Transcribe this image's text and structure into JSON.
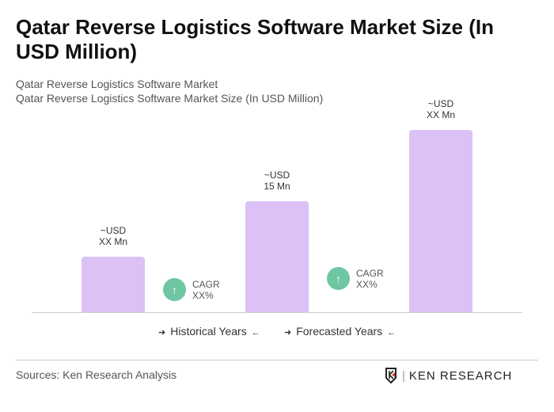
{
  "title": "Qatar Reverse Logistics Software Market Size (In USD Million)",
  "subtitle1": "Qatar Reverse Logistics Software Market",
  "subtitle2": "Qatar Reverse Logistics Software Market Size (In USD Million)",
  "chart_data": {
    "type": "bar",
    "categories": [
      "",
      "",
      ""
    ],
    "values": [
      null,
      15,
      null
    ],
    "data_labels": [
      [
        "~USD",
        "XX Mn"
      ],
      [
        "~USD",
        "15 Mn"
      ],
      [
        "~USD",
        "XX Mn"
      ]
    ],
    "bar_color": "#dcc1f6",
    "cagr": [
      {
        "label": "CAGR",
        "value": "XX%"
      },
      {
        "label": "CAGR",
        "value": "XX%"
      }
    ],
    "cagr_color": "#6fc6a3",
    "legend": [
      "Historical Years",
      "Forecasted Years"
    ],
    "grid": false
  },
  "source": "Sources: Ken Research Analysis",
  "logo": "KEN RESEARCH"
}
